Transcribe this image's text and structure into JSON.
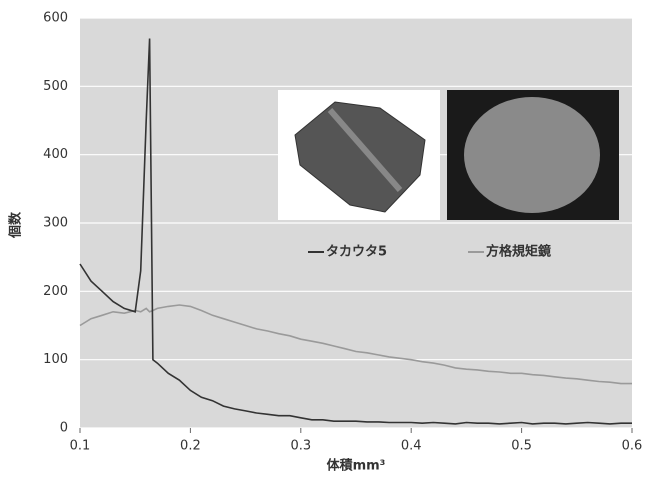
{
  "chart_data": {
    "type": "line",
    "x_label": "体積mm³",
    "y_label": "個数",
    "x": [
      0.1,
      0.11,
      0.12,
      0.13,
      0.14,
      0.15,
      0.155,
      0.16,
      0.163,
      0.166,
      0.17,
      0.18,
      0.19,
      0.2,
      0.21,
      0.22,
      0.23,
      0.24,
      0.25,
      0.26,
      0.27,
      0.28,
      0.29,
      0.3,
      0.31,
      0.32,
      0.33,
      0.34,
      0.35,
      0.36,
      0.37,
      0.38,
      0.39,
      0.4,
      0.41,
      0.42,
      0.43,
      0.44,
      0.45,
      0.46,
      0.47,
      0.48,
      0.49,
      0.5,
      0.51,
      0.52,
      0.53,
      0.54,
      0.55,
      0.56,
      0.57,
      0.58,
      0.59,
      0.6
    ],
    "series": [
      {
        "name": "タカウタ5",
        "color": "#333333",
        "values": [
          240,
          215,
          200,
          185,
          175,
          170,
          230,
          450,
          570,
          100,
          95,
          80,
          70,
          55,
          45,
          40,
          32,
          28,
          25,
          22,
          20,
          18,
          18,
          15,
          12,
          12,
          10,
          10,
          10,
          9,
          9,
          8,
          8,
          8,
          7,
          8,
          7,
          6,
          8,
          7,
          7,
          6,
          7,
          8,
          6,
          7,
          7,
          6,
          7,
          8,
          7,
          6,
          7,
          7
        ]
      },
      {
        "name": "方格規矩鏡",
        "color": "#9a9a9a",
        "values": [
          150,
          160,
          165,
          170,
          168,
          172,
          170,
          175,
          170,
          172,
          175,
          178,
          180,
          178,
          172,
          165,
          160,
          155,
          150,
          145,
          142,
          138,
          135,
          130,
          127,
          124,
          120,
          116,
          112,
          110,
          107,
          104,
          102,
          100,
          97,
          95,
          92,
          88,
          86,
          85,
          83,
          82,
          80,
          80,
          78,
          77,
          75,
          73,
          72,
          70,
          68,
          67,
          65,
          65
        ]
      }
    ],
    "xlim": [
      0.1,
      0.6
    ],
    "xticks": [
      0.1,
      0.2,
      0.3,
      0.4,
      0.5,
      0.6
    ],
    "ylim": [
      0,
      600
    ],
    "yticks": [
      0,
      100,
      200,
      300,
      400,
      500,
      600
    ],
    "grid": true
  }
}
